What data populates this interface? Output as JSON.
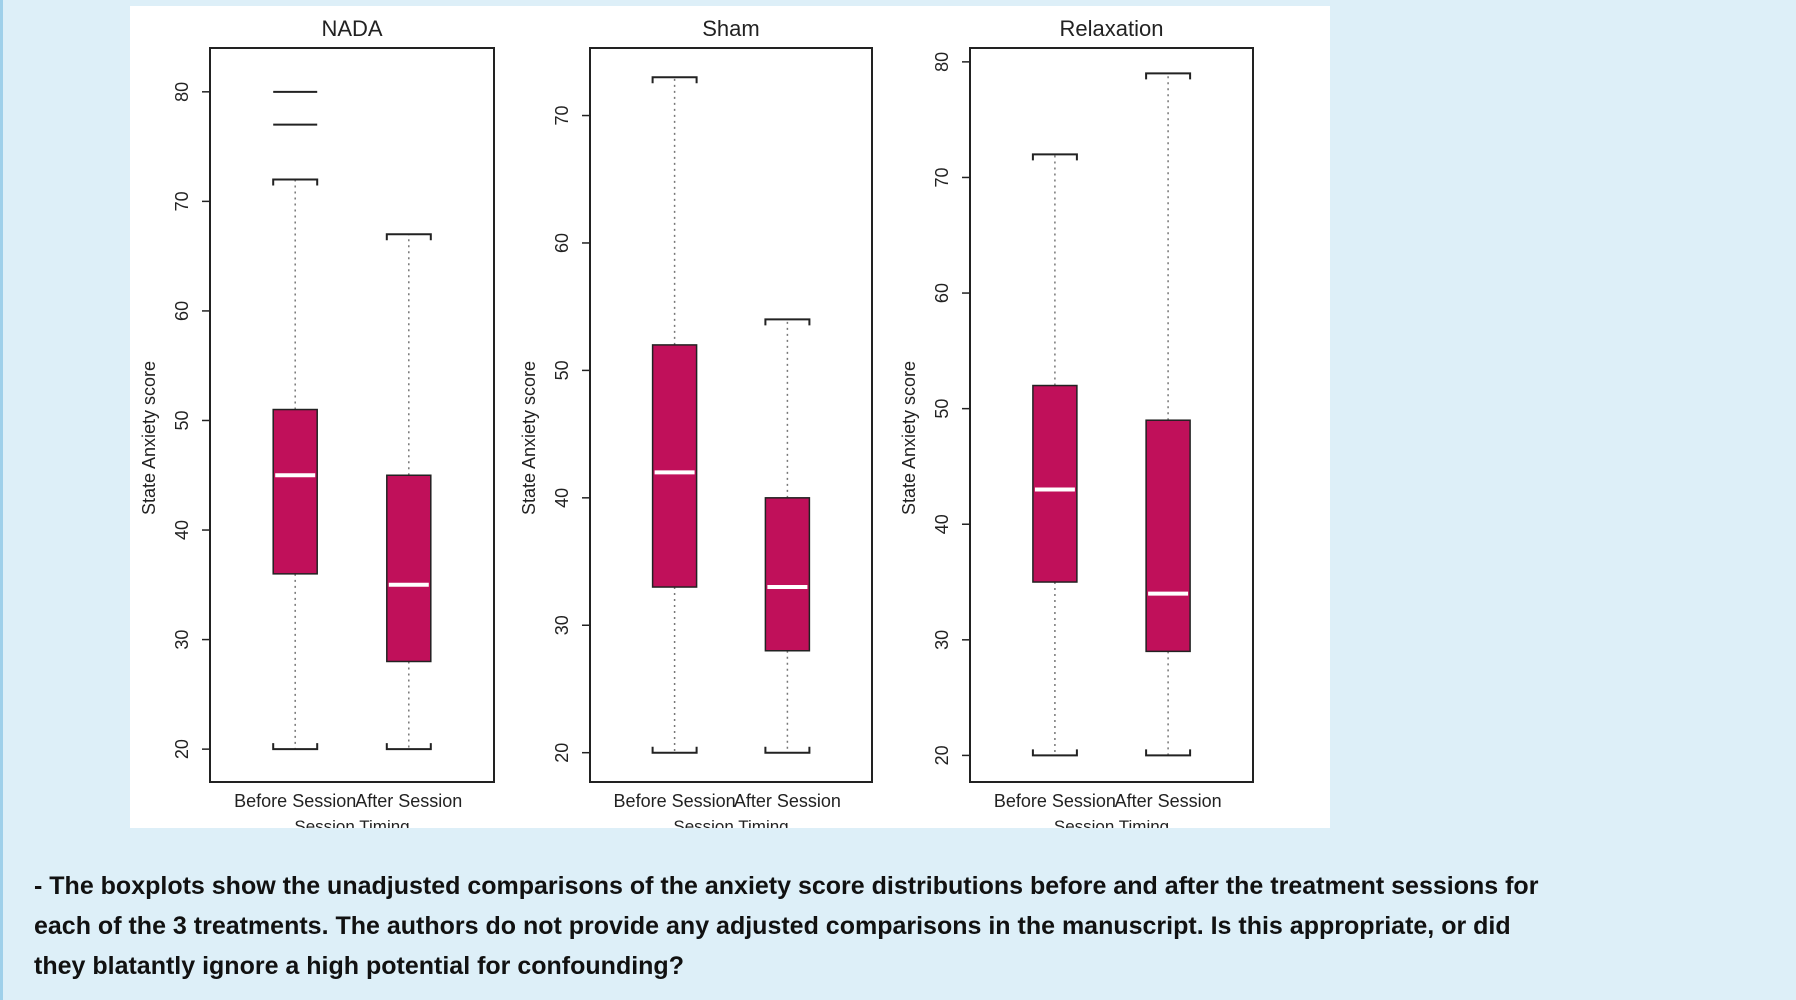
{
  "chart_data": [
    {
      "type": "boxplot",
      "title": "NADA",
      "xlabel": "Session Timing",
      "ylabel": "State Anxiety score",
      "categories": [
        "Before Session",
        "After Session"
      ],
      "ylim": [
        17,
        84
      ],
      "yticks": [
        20,
        30,
        40,
        50,
        60,
        70,
        80
      ],
      "boxes": [
        {
          "min": 20,
          "q1": 36,
          "median": 45,
          "q3": 51,
          "max": 72,
          "outliers": [
            77,
            80
          ]
        },
        {
          "min": 20,
          "q1": 28,
          "median": 35,
          "q3": 45,
          "max": 67,
          "outliers": []
        }
      ]
    },
    {
      "type": "boxplot",
      "title": "Sham",
      "xlabel": "Session Timing",
      "ylabel": "State Anxiety score",
      "categories": [
        "Before Session",
        "After Session"
      ],
      "ylim": [
        17.7,
        75.3
      ],
      "yticks": [
        20,
        30,
        40,
        50,
        60,
        70
      ],
      "boxes": [
        {
          "min": 20,
          "q1": 33,
          "median": 42,
          "q3": 52,
          "max": 73,
          "outliers": []
        },
        {
          "min": 20,
          "q1": 28,
          "median": 33,
          "q3": 40,
          "max": 54,
          "outliers": []
        }
      ]
    },
    {
      "type": "boxplot",
      "title": "Relaxation",
      "xlabel": "Session Timing",
      "ylabel": "State Anxiety score",
      "categories": [
        "Before Session",
        "After Session"
      ],
      "ylim": [
        17.7,
        81.2
      ],
      "yticks": [
        20,
        30,
        40,
        50,
        60,
        70,
        80
      ],
      "boxes": [
        {
          "min": 20,
          "q1": 35,
          "median": 43,
          "q3": 52,
          "max": 72,
          "outliers": []
        },
        {
          "min": 20,
          "q1": 29,
          "median": 34,
          "q3": 49,
          "max": 79,
          "outliers": []
        }
      ]
    }
  ],
  "colors": {
    "box": "#c0105a",
    "median": "#ffffff",
    "frame": "#222222"
  },
  "caption": {
    "line1": "- The boxplots show the unadjusted comparisons of the anxiety score distributions before and after the treatment sessions for",
    "line2": "each of the 3 treatments.  The authors do not provide any adjusted comparisons in the manuscript.  Is this appropriate, or did",
    "line3": "they blatantly ignore a high potential for confounding?"
  }
}
